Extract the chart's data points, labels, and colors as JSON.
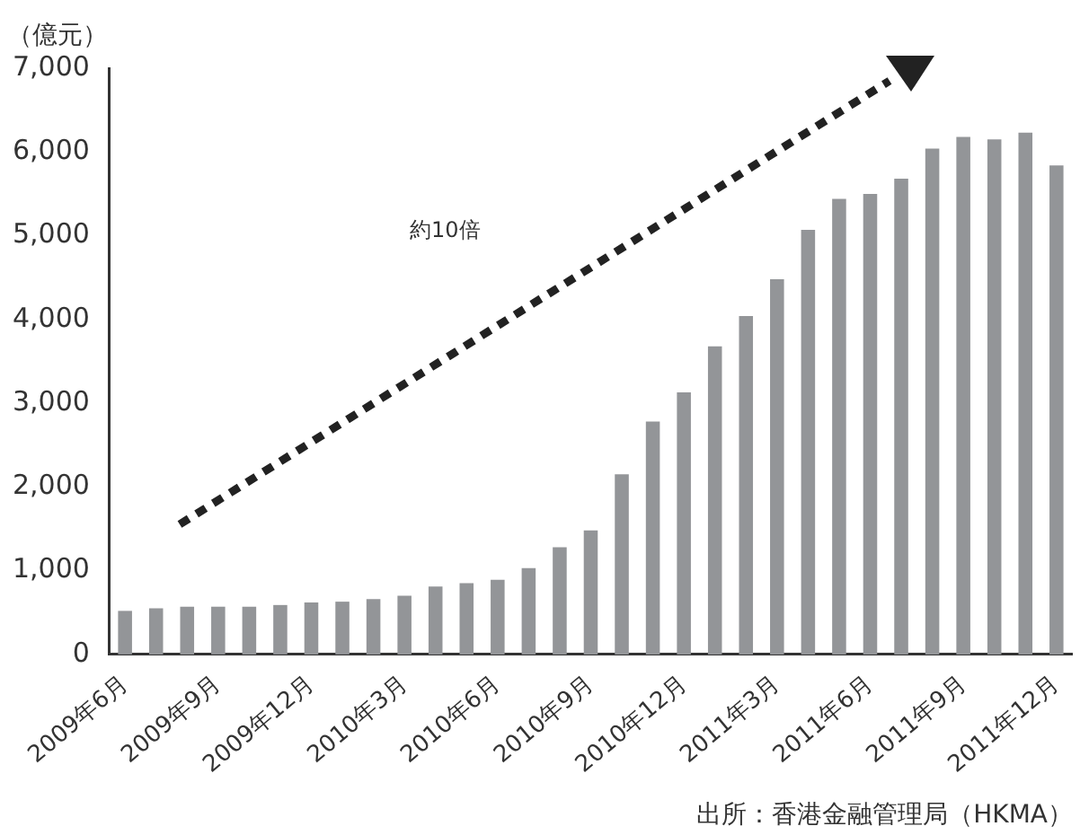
{
  "chart_data": {
    "type": "bar",
    "ylabel": "（億元）",
    "categories": [
      "2009年6月",
      null,
      null,
      "2009年9月",
      null,
      null,
      "2009年12月",
      null,
      null,
      "2010年3月",
      null,
      null,
      "2010年6月",
      null,
      null,
      "2010年9月",
      null,
      null,
      "2010年12月",
      null,
      null,
      "2011年3月",
      null,
      null,
      "2011年6月",
      null,
      null,
      "2011年9月",
      null,
      null,
      "2011年12月"
    ],
    "values": [
      520,
      550,
      570,
      570,
      570,
      590,
      620,
      630,
      660,
      700,
      810,
      850,
      890,
      1030,
      1280,
      1480,
      2150,
      2780,
      3130,
      3680,
      4040,
      4480,
      5070,
      5440,
      5500,
      5680,
      6040,
      6180,
      6150,
      6230,
      5840
    ],
    "color": "#939598",
    "ylim": [
      0,
      7000
    ],
    "yticks": [
      0,
      {
        "value": 1000,
        "label": "1,000"
      },
      {
        "value": 2000,
        "label": "2,000"
      },
      {
        "value": 3000,
        "label": "3,000"
      },
      {
        "value": 4000,
        "label": "4,000"
      },
      {
        "value": 5000,
        "label": "5,000"
      },
      {
        "value": 6000,
        "label": "6,000"
      },
      {
        "value": 7000,
        "label": "7,000"
      }
    ],
    "grid": false,
    "legend": false,
    "annotations": [
      "約10倍",
      "出所：香港金融管理局（HKMA）"
    ]
  }
}
